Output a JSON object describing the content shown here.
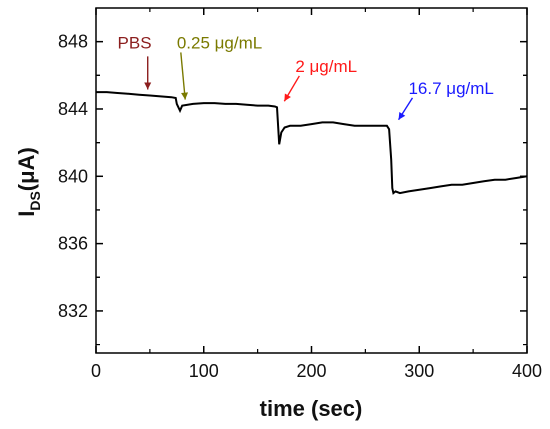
{
  "chart_data": {
    "type": "line",
    "title": "",
    "xlabel": "time (sec)",
    "ylabel_main": "I",
    "ylabel_sub": "DS",
    "ylabel_unit": "(μA)",
    "xlim": [
      0,
      400
    ],
    "ylim": [
      829.5,
      850
    ],
    "xticks": [
      0,
      100,
      200,
      300,
      400
    ],
    "yticks": [
      832,
      836,
      840,
      844,
      848
    ],
    "grid": false,
    "series": [
      {
        "color": "#000000",
        "x": [
          0,
          10,
          20,
          30,
          40,
          50,
          60,
          70,
          74,
          75,
          78,
          80,
          90,
          100,
          110,
          120,
          130,
          140,
          150,
          160,
          166,
          168,
          169,
          170,
          172,
          175,
          180,
          190,
          200,
          210,
          220,
          230,
          240,
          250,
          260,
          270,
          272,
          274,
          275,
          276,
          278,
          282,
          290,
          300,
          310,
          320,
          330,
          340,
          350,
          360,
          370,
          380,
          390,
          400
        ],
        "y": [
          845.0,
          845.0,
          844.95,
          844.9,
          844.85,
          844.8,
          844.75,
          844.7,
          844.65,
          844.3,
          843.9,
          844.2,
          844.3,
          844.35,
          844.35,
          844.3,
          844.3,
          844.25,
          844.2,
          844.2,
          844.15,
          844.1,
          843.0,
          841.9,
          842.6,
          842.9,
          843.0,
          843.0,
          843.1,
          843.2,
          843.2,
          843.1,
          843.0,
          843.0,
          843.0,
          843.0,
          842.8,
          841.0,
          839.3,
          839.0,
          839.1,
          839.0,
          839.1,
          839.2,
          839.3,
          839.4,
          839.5,
          839.5,
          839.6,
          839.7,
          839.8,
          839.8,
          839.9,
          840.0
        ]
      }
    ],
    "annotations": [
      {
        "text": "PBS",
        "color": "#8b1e1e",
        "x": 48,
        "y": 844.8,
        "label_x": 20,
        "label_y": 847.6
      },
      {
        "text": "0.25 μg/mL",
        "color": "#7a7a00",
        "x": 80,
        "y": 844.2,
        "label_x": 75,
        "label_y": 847.6
      },
      {
        "text": "2 μg/mL",
        "color": "#ff1a1a",
        "x": 172,
        "y": 844.1,
        "label_x": 185,
        "label_y": 846.2
      },
      {
        "text": "16.7 μg/mL",
        "color": "#1a1aff",
        "x": 278,
        "y": 843.0,
        "label_x": 290,
        "label_y": 844.9
      }
    ]
  }
}
